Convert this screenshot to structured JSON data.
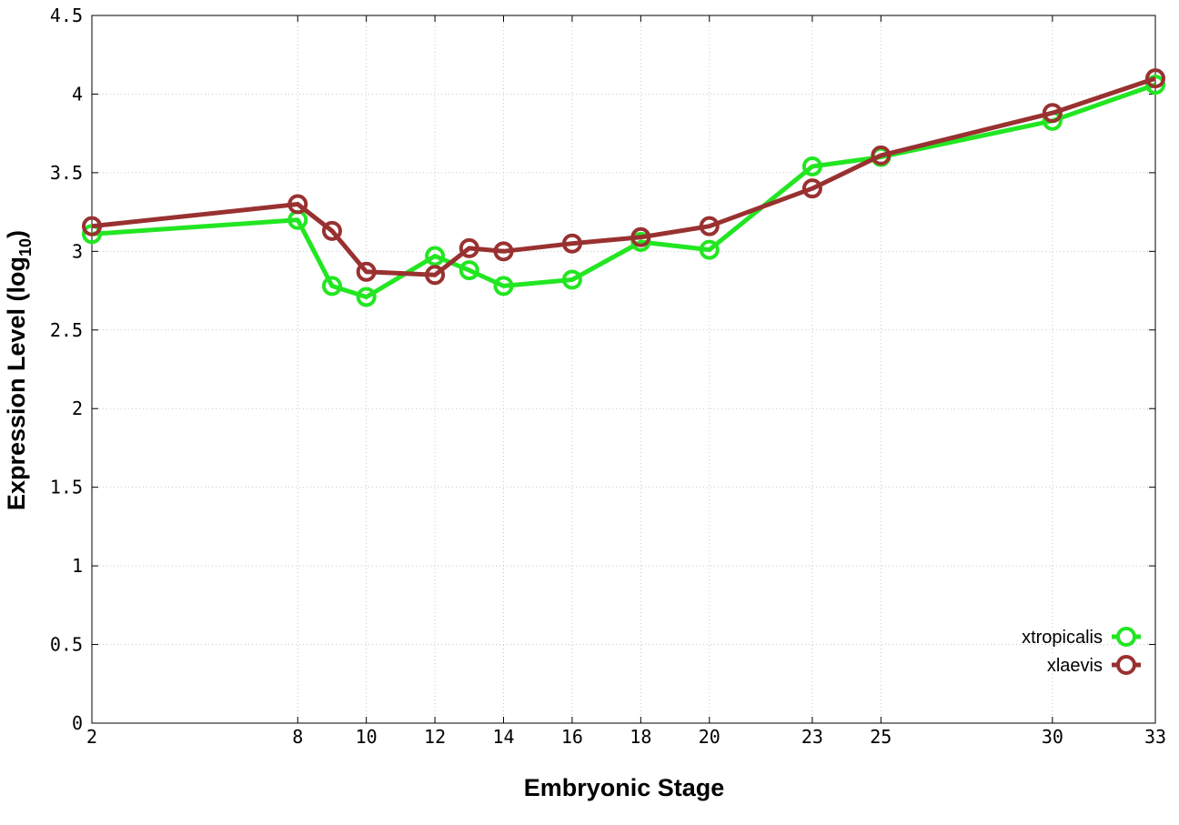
{
  "chart_data": {
    "type": "line",
    "xlabel": "Embryonic Stage",
    "ylabel_main": "Expression Level (log",
    "ylabel_sub": "10",
    "ylabel_close": ")",
    "ylim": [
      0,
      4.5
    ],
    "xlim": [
      2,
      33
    ],
    "yticks": [
      {
        "value": 0,
        "label": "0"
      },
      {
        "value": 0.5,
        "label": "0.5"
      },
      {
        "value": 1,
        "label": "1"
      },
      {
        "value": 1.5,
        "label": "1.5"
      },
      {
        "value": 2,
        "label": "2"
      },
      {
        "value": 2.5,
        "label": "2.5"
      },
      {
        "value": 3,
        "label": "3"
      },
      {
        "value": 3.5,
        "label": "3.5"
      },
      {
        "value": 4,
        "label": "4"
      },
      {
        "value": 4.5,
        "label": "4.5"
      }
    ],
    "xticks": [
      {
        "value": 2,
        "label": "2"
      },
      {
        "value": 8,
        "label": "8"
      },
      {
        "value": 10,
        "label": "10"
      },
      {
        "value": 12,
        "label": "12"
      },
      {
        "value": 14,
        "label": "14"
      },
      {
        "value": 16,
        "label": "16"
      },
      {
        "value": 18,
        "label": "18"
      },
      {
        "value": 20,
        "label": "20"
      },
      {
        "value": 23,
        "label": "23"
      },
      {
        "value": 25,
        "label": "25"
      },
      {
        "value": 30,
        "label": "30"
      },
      {
        "value": 33,
        "label": "33"
      }
    ],
    "grid": true,
    "legend_position": "bottom-right",
    "series": [
      {
        "name": "xtropicalis",
        "color": "#22e622",
        "x": [
          2,
          8,
          9,
          10,
          12,
          13,
          14,
          16,
          18,
          20,
          23,
          25,
          30,
          33
        ],
        "y": [
          3.11,
          3.2,
          2.78,
          2.71,
          2.97,
          2.88,
          2.78,
          2.82,
          3.06,
          3.01,
          3.54,
          3.6,
          3.83,
          4.06
        ]
      },
      {
        "name": "xlaevis",
        "color": "#993131",
        "x": [
          2,
          8,
          9,
          10,
          12,
          13,
          14,
          16,
          18,
          20,
          23,
          25,
          30,
          33
        ],
        "y": [
          3.16,
          3.3,
          3.13,
          2.87,
          2.85,
          3.02,
          3.0,
          3.05,
          3.09,
          3.16,
          3.4,
          3.61,
          3.88,
          4.1
        ]
      }
    ]
  }
}
